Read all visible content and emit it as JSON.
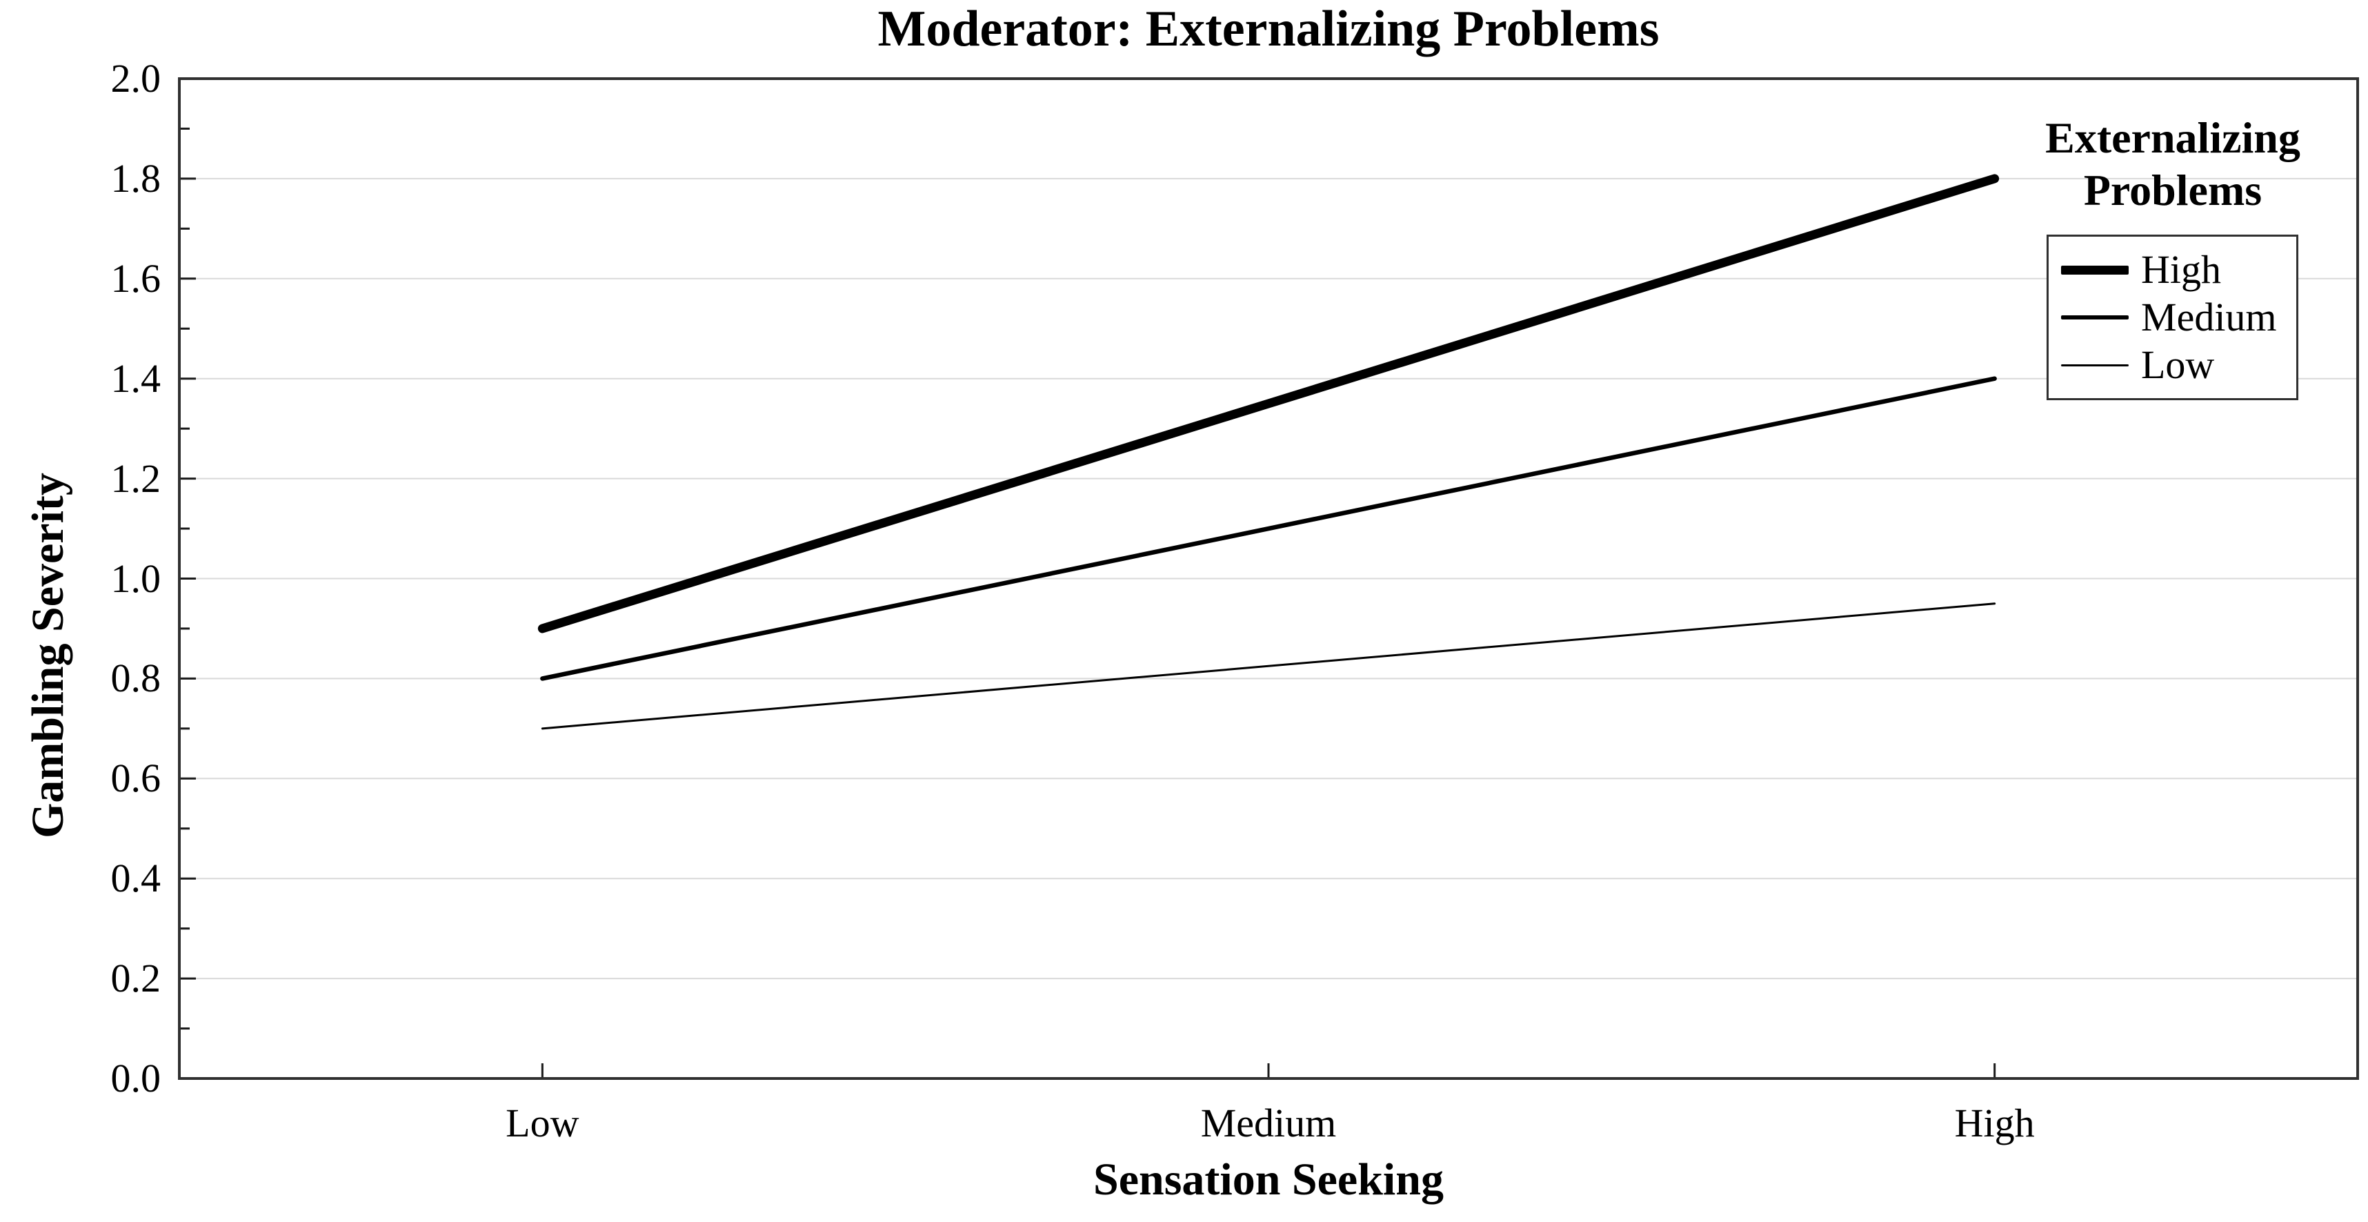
{
  "chart_data": {
    "type": "line",
    "title": "Moderator: Externalizing Problems",
    "xlabel": "Sensation Seeking",
    "ylabel": "Gambling Severity",
    "categories": [
      "Low",
      "Medium",
      "High"
    ],
    "series": [
      {
        "name": "High",
        "values": [
          0.9,
          1.35,
          1.8
        ],
        "line_width": 13
      },
      {
        "name": "Medium",
        "values": [
          0.8,
          1.1,
          1.4
        ],
        "line_width": 6.5
      },
      {
        "name": "Low",
        "values": [
          0.7,
          0.825,
          0.95
        ],
        "line_width": 3
      }
    ],
    "ylim": [
      0.0,
      2.0
    ],
    "ytick_step": 0.2,
    "yticks": [
      "0.0",
      "0.2",
      "0.4",
      "0.6",
      "0.8",
      "1.0",
      "1.2",
      "1.4",
      "1.6",
      "1.8",
      "2.0"
    ],
    "minor_ytick_step": 0.1,
    "grid": "horizontal-major-only",
    "legend": {
      "title": "Externalizing Problems",
      "position": "top-right",
      "entries": [
        "High",
        "Medium",
        "Low"
      ]
    },
    "colors": {
      "line": "#000000",
      "gridline": "#d9d9d9",
      "frame": "#303030",
      "tick": "#1a1a1a",
      "text": "#000000",
      "background": "#ffffff"
    }
  }
}
